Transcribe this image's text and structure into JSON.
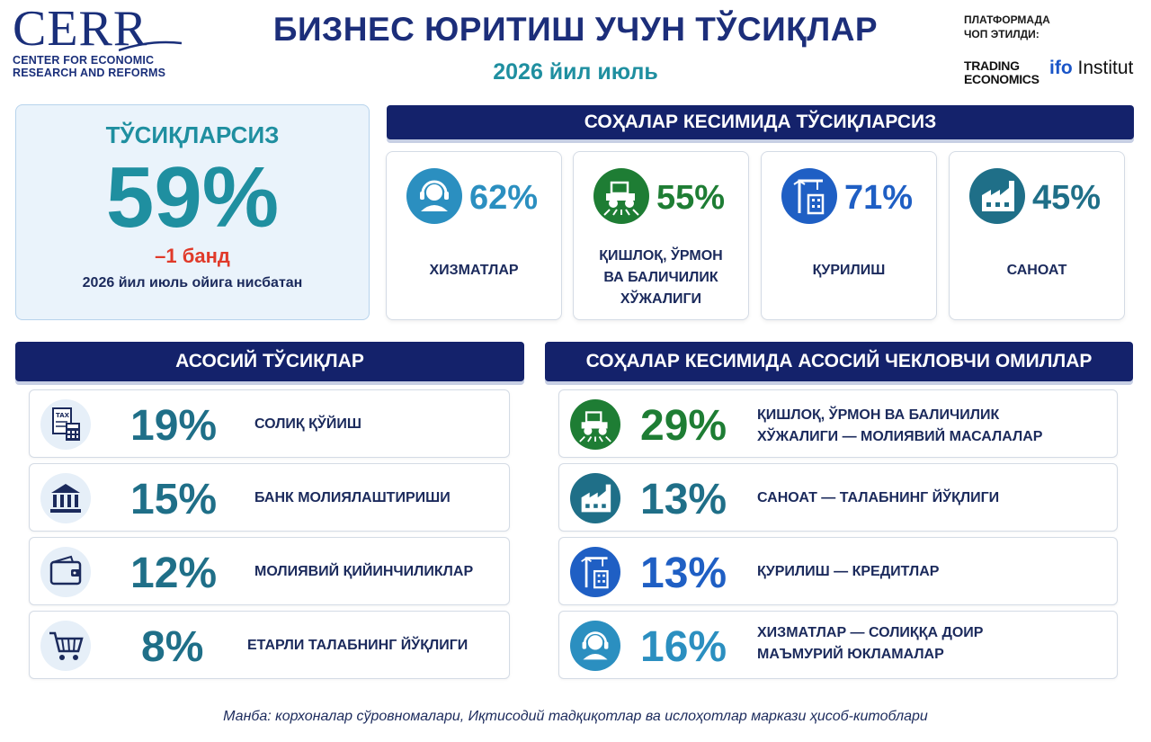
{
  "header": {
    "logo_text": "CERR",
    "logo_sub_1": "CENTER FOR ECONOMIC",
    "logo_sub_2": "RESEARCH AND REFORMS",
    "title": "БИЗНЕС ЮРИТИШ УЧУН ТЎСИҚЛАР",
    "subtitle": "2026 йил июль",
    "platform_1": "ПЛАТФОРМАДА",
    "platform_2": "ЧОП ЭТИЛДИ:",
    "te_1": "TRADING",
    "te_2": "ECONOMICS",
    "ifo_1": "ifo",
    "ifo_2": "Institut"
  },
  "main": {
    "label": "ТЎСИҚЛАРСИЗ",
    "value": "59%",
    "change": "–1 банд",
    "comparison": "2026 йил июль ойига нисбатан"
  },
  "sectors": {
    "heading": "СОҲАЛАР КЕСИМИДА ТЎСИҚЛАРСИЗ",
    "items": [
      {
        "value": "62%",
        "name": "ХИЗМАТЛАР",
        "icon": "headset-icon",
        "color": "#2b8fc0"
      },
      {
        "value": "55%",
        "name_1": "ҚИШЛОҚ, ЎРМОН",
        "name_2": "ВА БАЛИЧИЛИК",
        "name_3": "ХЎЖАЛИГИ",
        "icon": "tractor-icon",
        "color": "#1e7d34"
      },
      {
        "value": "71%",
        "name": "ҚУРИЛИШ",
        "icon": "crane-icon",
        "color": "#1f5fc4"
      },
      {
        "value": "45%",
        "name": "САНОАТ",
        "icon": "factory-icon",
        "color": "#1f6f88"
      }
    ]
  },
  "obstacles": {
    "heading": "АСОСИЙ ТЎСИҚЛАР",
    "items": [
      {
        "value": "19%",
        "label": "СОЛИҚ ҚЎЙИШ",
        "icon": "tax-calculator-icon"
      },
      {
        "value": "15%",
        "label": "БАНК МОЛИЯЛАШТИРИШИ",
        "icon": "bank-icon"
      },
      {
        "value": "12%",
        "label": "МОЛИЯВИЙ ҚИЙИНЧИЛИКЛАР",
        "icon": "wallet-icon"
      },
      {
        "value": "8%",
        "label": "ЕТАРЛИ ТАЛАБНИНГ ЙЎҚЛИГИ",
        "icon": "shopping-cart-icon"
      }
    ],
    "color": "#1f6f88"
  },
  "factors": {
    "heading": "СОҲАЛАР КЕСИМИДА АСОСИЙ ЧЕКЛОВЧИ ОМИЛЛАР",
    "items": [
      {
        "value": "29%",
        "label_1": "ҚИШЛОҚ, ЎРМОН ВА БАЛИЧИЛИК",
        "label_2": "ХЎЖАЛИГИ — МОЛИЯВИЙ МАСАЛАЛАР",
        "icon": "tractor-icon",
        "color": "#1e7d34"
      },
      {
        "value": "13%",
        "label_1": "САНОАТ — ТАЛАБНИНГ ЙЎҚЛИГИ",
        "icon": "factory-icon",
        "color": "#1f6f88"
      },
      {
        "value": "13%",
        "label_1": "ҚУРИЛИШ — КРЕДИТЛАР",
        "icon": "crane-icon",
        "color": "#1f5fc4"
      },
      {
        "value": "16%",
        "label_1": "ХИЗМАТЛАР — СОЛИҚҚА ДОИР",
        "label_2": "МАЪМУРИЙ ЮКЛАМАЛАР",
        "icon": "headset-icon",
        "color": "#2b8fc0"
      }
    ]
  },
  "source": "Манба: корхоналар сўровномалари, Иқтисодий тадқиқотлар ва ислоҳотлар маркази ҳисоб-китоблари"
}
